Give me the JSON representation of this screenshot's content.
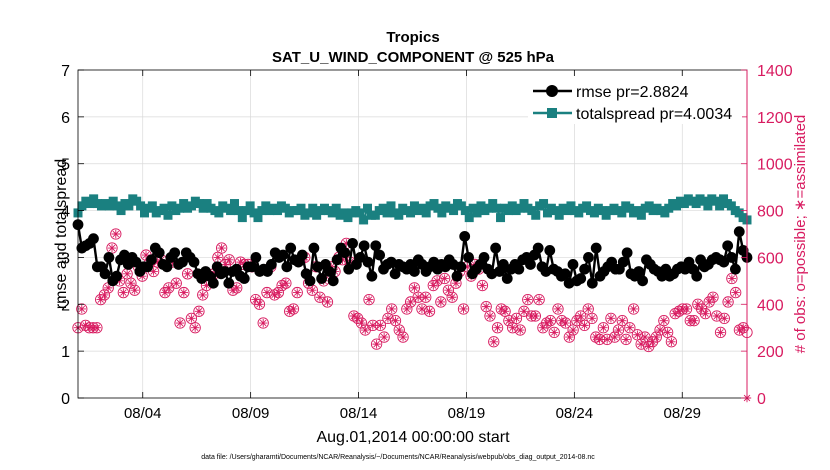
{
  "chart_data": {
    "type": "line",
    "title": "Tropics",
    "subtitle": "SAT_U_WIND_COMPONENT @ 525 hPa",
    "xlabel": "Aug.01,2014 00:00:00 start",
    "ylabel": "rmse and totalspread",
    "y2label": "# of obs: o=possible; ∗=assimilated",
    "footnote": "data file: /Users/gharamti/Documents/NCAR/Reanalysis/~/Documents/NCAR/Reanalysis/webpub/obs_diag_output_2014-08.nc",
    "xlim": [
      1.0,
      32.0
    ],
    "ylim": [
      0,
      7
    ],
    "y2lim": [
      0,
      1400
    ],
    "xticks": [
      4,
      9,
      14,
      19,
      24,
      29
    ],
    "xtick_labels": [
      "08/04",
      "08/09",
      "08/14",
      "08/19",
      "08/24",
      "08/29"
    ],
    "yticks": [
      0,
      1,
      2,
      3,
      4,
      5,
      6,
      7
    ],
    "ytick_labels": [
      "0",
      "1",
      "2",
      "3",
      "4",
      "5",
      "6",
      "7"
    ],
    "y2ticks": [
      0,
      200,
      400,
      600,
      800,
      1000,
      1200,
      1400
    ],
    "y2tick_labels": [
      "0",
      "200",
      "400",
      "600",
      "800",
      "1000",
      "1200",
      "1400"
    ],
    "grid": true,
    "legend_position": "top-right",
    "colors": {
      "rmse": "#000000",
      "totalspread": "#1a8080",
      "obs": "#d81b60"
    },
    "series": [
      {
        "name": "rmse",
        "legend": "rmse pr=2.8824",
        "axis": "left",
        "values": [
          3.7,
          3.2,
          3.25,
          3.3,
          3.4,
          2.8,
          2.8,
          2.65,
          3.0,
          2.5,
          2.6,
          2.95,
          3.05,
          2.85,
          3.0,
          2.9,
          2.7,
          2.8,
          2.8,
          2.95,
          3.2,
          3.1,
          2.85,
          2.8,
          3.0,
          3.1,
          2.85,
          2.9,
          3.1,
          3.0,
          2.9,
          2.65,
          2.55,
          2.7,
          2.6,
          2.45,
          2.8,
          2.65,
          2.7,
          2.45,
          2.7,
          2.75,
          2.6,
          2.55,
          2.8,
          2.8,
          3.0,
          2.7,
          2.75,
          2.7,
          2.85,
          3.1,
          3.0,
          3.05,
          2.8,
          3.2,
          2.95,
          2.9,
          3.05,
          2.65,
          2.5,
          3.2,
          2.8,
          2.55,
          2.85,
          2.7,
          2.5,
          2.95,
          3.2,
          3.1,
          2.75,
          3.3,
          2.85,
          3.0,
          3.25,
          2.9,
          2.6,
          3.25,
          3.05,
          2.75,
          2.85,
          2.9,
          2.65,
          2.85,
          2.8,
          2.75,
          2.85,
          2.7,
          2.95,
          2.85,
          2.7,
          2.8,
          2.9,
          2.75,
          2.85,
          2.8,
          2.95,
          2.85,
          2.6,
          2.8,
          3.45,
          3.0,
          2.65,
          2.75,
          2.85,
          3.0,
          2.75,
          2.65,
          3.2,
          2.7,
          2.85,
          2.55,
          2.75,
          2.85,
          2.75,
          2.95,
          3.0,
          2.85,
          3.05,
          3.2,
          2.8,
          2.7,
          3.15,
          2.75,
          2.7,
          2.6,
          2.65,
          2.45,
          2.85,
          2.5,
          2.55,
          2.75,
          3.0,
          2.45,
          3.2,
          2.6,
          2.7,
          2.8,
          2.9,
          2.75,
          2.75,
          2.9,
          3.1,
          2.65,
          2.6,
          2.7,
          2.5,
          2.95,
          2.85,
          2.75,
          2.7,
          2.6,
          2.75,
          2.6,
          2.65,
          2.75,
          2.8,
          2.75,
          2.9,
          2.75,
          2.6,
          2.95,
          2.8,
          2.85,
          2.95,
          3.0,
          2.95,
          2.9,
          3.25,
          3.0,
          2.75,
          3.55,
          3.15,
          3.0
        ]
      },
      {
        "name": "totalspread",
        "legend": "totalspread pr=4.0034",
        "axis": "left",
        "values": [
          3.95,
          4.1,
          4.2,
          4.15,
          4.25,
          4.15,
          4.1,
          4.15,
          4.1,
          4.2,
          4.1,
          4.0,
          4.15,
          4.1,
          4.25,
          4.2,
          4.1,
          3.95,
          4.05,
          4.1,
          3.95,
          4.0,
          4.05,
          3.9,
          4.1,
          4.0,
          4.05,
          4.15,
          4.05,
          4.1,
          4.2,
          4.15,
          4.05,
          4.15,
          4.05,
          4.0,
          3.95,
          4.1,
          4.05,
          4.0,
          4.15,
          4.0,
          3.85,
          4.0,
          4.1,
          3.95,
          3.85,
          4.0,
          4.1,
          4.0,
          4.05,
          4.0,
          4.1,
          4.05,
          3.95,
          4.0,
          4.0,
          4.05,
          3.9,
          3.95,
          4.05,
          3.9,
          4.0,
          4.05,
          4.0,
          3.95,
          4.05,
          3.9,
          3.95,
          3.85,
          3.95,
          4.0,
          3.95,
          3.8,
          4.05,
          3.9,
          3.9,
          4.0,
          4.05,
          3.95,
          4.1,
          3.95,
          3.9,
          4.05,
          4.0,
          3.95,
          4.1,
          4.0,
          4.05,
          3.95,
          4.1,
          4.15,
          4.05,
          3.95,
          4.1,
          4.05,
          4.0,
          4.15,
          4.1,
          4.0,
          3.85,
          4.05,
          3.95,
          4.1,
          4.0,
          4.05,
          4.15,
          4.05,
          3.85,
          4.05,
          4.0,
          4.1,
          4.0,
          4.05,
          4.15,
          4.05,
          4.0,
          3.9,
          4.1,
          4.15,
          3.95,
          4.05,
          4.0,
          3.9,
          4.05,
          4.0,
          4.1,
          4.0,
          3.95,
          4.05,
          4.1,
          4.0,
          3.95,
          4.05,
          4.0,
          3.9,
          4.0,
          4.05,
          4.0,
          3.95,
          4.1,
          4.05,
          3.95,
          4.0,
          3.9,
          4.05,
          4.1,
          4.0,
          4.05,
          4.0,
          3.95,
          4.05,
          4.15,
          4.1,
          4.2,
          4.15,
          4.25,
          4.2,
          4.15,
          4.25,
          4.2,
          4.1,
          4.25,
          4.2,
          4.1,
          4.25,
          4.15,
          4.1,
          4.0,
          3.95,
          3.85,
          3.8
        ]
      },
      {
        "name": "obs_possible",
        "legend": "o=possible",
        "axis": "right",
        "values": [
          300,
          380,
          310,
          300,
          300,
          300,
          420,
          440,
          470,
          640,
          700,
          500,
          450,
          530,
          490,
          460,
          560,
          520,
          610,
          580,
          540,
          580,
          590,
          450,
          470,
          580,
          490,
          320,
          450,
          530,
          340,
          300,
          370,
          440,
          480,
          520,
          530,
          600,
          640,
          570,
          590,
          460,
          470,
          580,
          570,
          570,
          560,
          420,
          400,
          320,
          450,
          560,
          440,
          450,
          480,
          490,
          370,
          380,
          450,
          590,
          600,
          490,
          460,
          560,
          430,
          500,
          410,
          560,
          540,
          600,
          590,
          660,
          580,
          350,
          340,
          320,
          290,
          420,
          310,
          230,
          310,
          260,
          340,
          380,
          330,
          290,
          260,
          380,
          410,
          470,
          430,
          380,
          430,
          370,
          480,
          500,
          410,
          510,
          460,
          430,
          490,
          540,
          380,
          560,
          520,
          570,
          550,
          480,
          390,
          350,
          240,
          300,
          380,
          370,
          330,
          300,
          340,
          290,
          370,
          420,
          350,
          350,
          420,
          300,
          320,
          330,
          280,
          380,
          330,
          320,
          260,
          290,
          330,
          350,
          310,
          380,
          340,
          260,
          250,
          300,
          250,
          340,
          260,
          290,
          330,
          250,
          300,
          380,
          270,
          230,
          260,
          220,
          240,
          260,
          290,
          330,
          280,
          240,
          360,
          370,
          380,
          380,
          330,
          330,
          400,
          380,
          360,
          410,
          430,
          350,
          280,
          340,
          410,
          510,
          450,
          290,
          300,
          280
        ]
      },
      {
        "name": "obs_assimilated",
        "legend": "∗=assimilated",
        "axis": "right",
        "values": [
          300,
          380,
          310,
          300,
          300,
          300,
          420,
          440,
          470,
          640,
          700,
          500,
          450,
          530,
          490,
          460,
          560,
          520,
          610,
          580,
          540,
          580,
          590,
          450,
          470,
          580,
          490,
          320,
          450,
          530,
          340,
          300,
          370,
          440,
          480,
          520,
          530,
          600,
          640,
          570,
          590,
          460,
          470,
          580,
          570,
          570,
          560,
          420,
          400,
          320,
          450,
          560,
          440,
          450,
          480,
          490,
          370,
          380,
          450,
          590,
          600,
          490,
          460,
          560,
          430,
          500,
          410,
          560,
          540,
          600,
          590,
          660,
          580,
          350,
          340,
          320,
          290,
          420,
          310,
          230,
          310,
          260,
          340,
          380,
          330,
          290,
          260,
          380,
          410,
          470,
          430,
          380,
          430,
          370,
          480,
          500,
          410,
          510,
          460,
          430,
          490,
          540,
          380,
          560,
          520,
          570,
          550,
          480,
          390,
          350,
          240,
          300,
          380,
          370,
          330,
          300,
          340,
          290,
          370,
          420,
          350,
          350,
          420,
          300,
          320,
          330,
          280,
          380,
          330,
          320,
          260,
          290,
          330,
          350,
          310,
          380,
          340,
          260,
          250,
          300,
          250,
          340,
          260,
          290,
          330,
          250,
          300,
          380,
          270,
          230,
          260,
          220,
          240,
          260,
          290,
          330,
          280,
          240,
          360,
          370,
          380,
          380,
          330,
          330,
          400,
          380,
          360,
          410,
          430,
          350,
          280,
          340,
          410,
          510,
          450,
          290,
          300,
          0
        ]
      }
    ]
  }
}
